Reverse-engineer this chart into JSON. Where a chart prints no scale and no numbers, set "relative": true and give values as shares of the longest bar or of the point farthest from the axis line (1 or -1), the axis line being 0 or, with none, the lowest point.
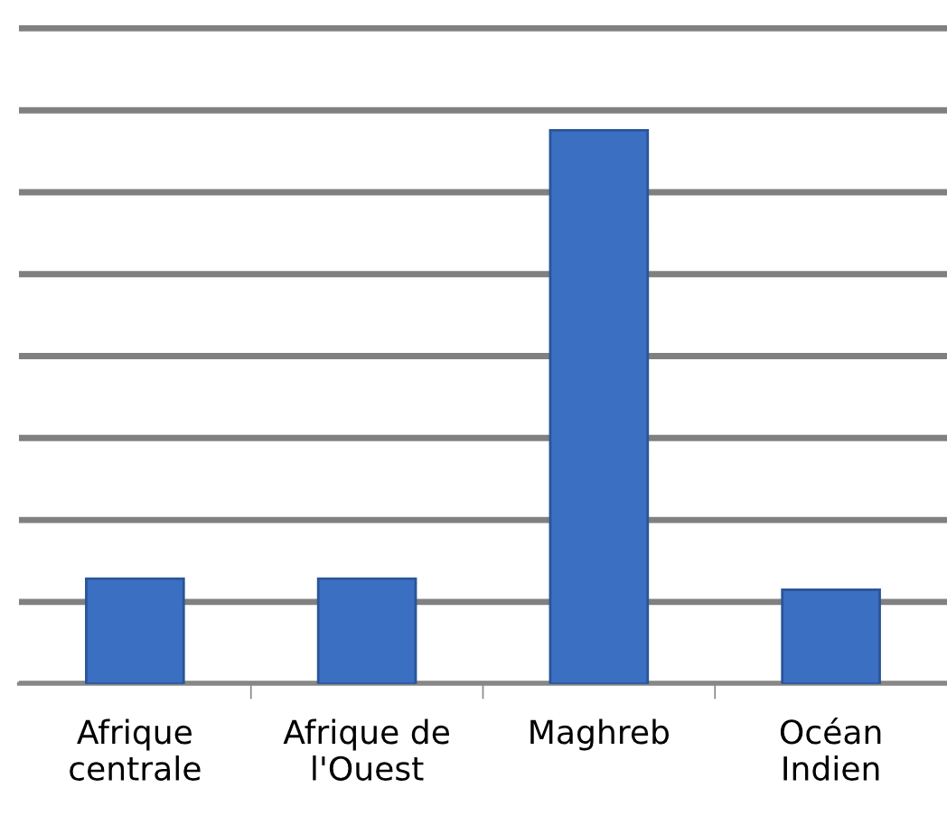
{
  "chart_data": {
    "type": "bar",
    "relative": true,
    "categories": [
      "Afrique\ncentrale",
      "Afrique de\nl'Ouest",
      "Maghreb",
      "Océan\nIndien"
    ],
    "values": [
      0.19,
      0.19,
      1,
      0.17
    ],
    "color": "#3b6fc2",
    "grid": "y"
  }
}
